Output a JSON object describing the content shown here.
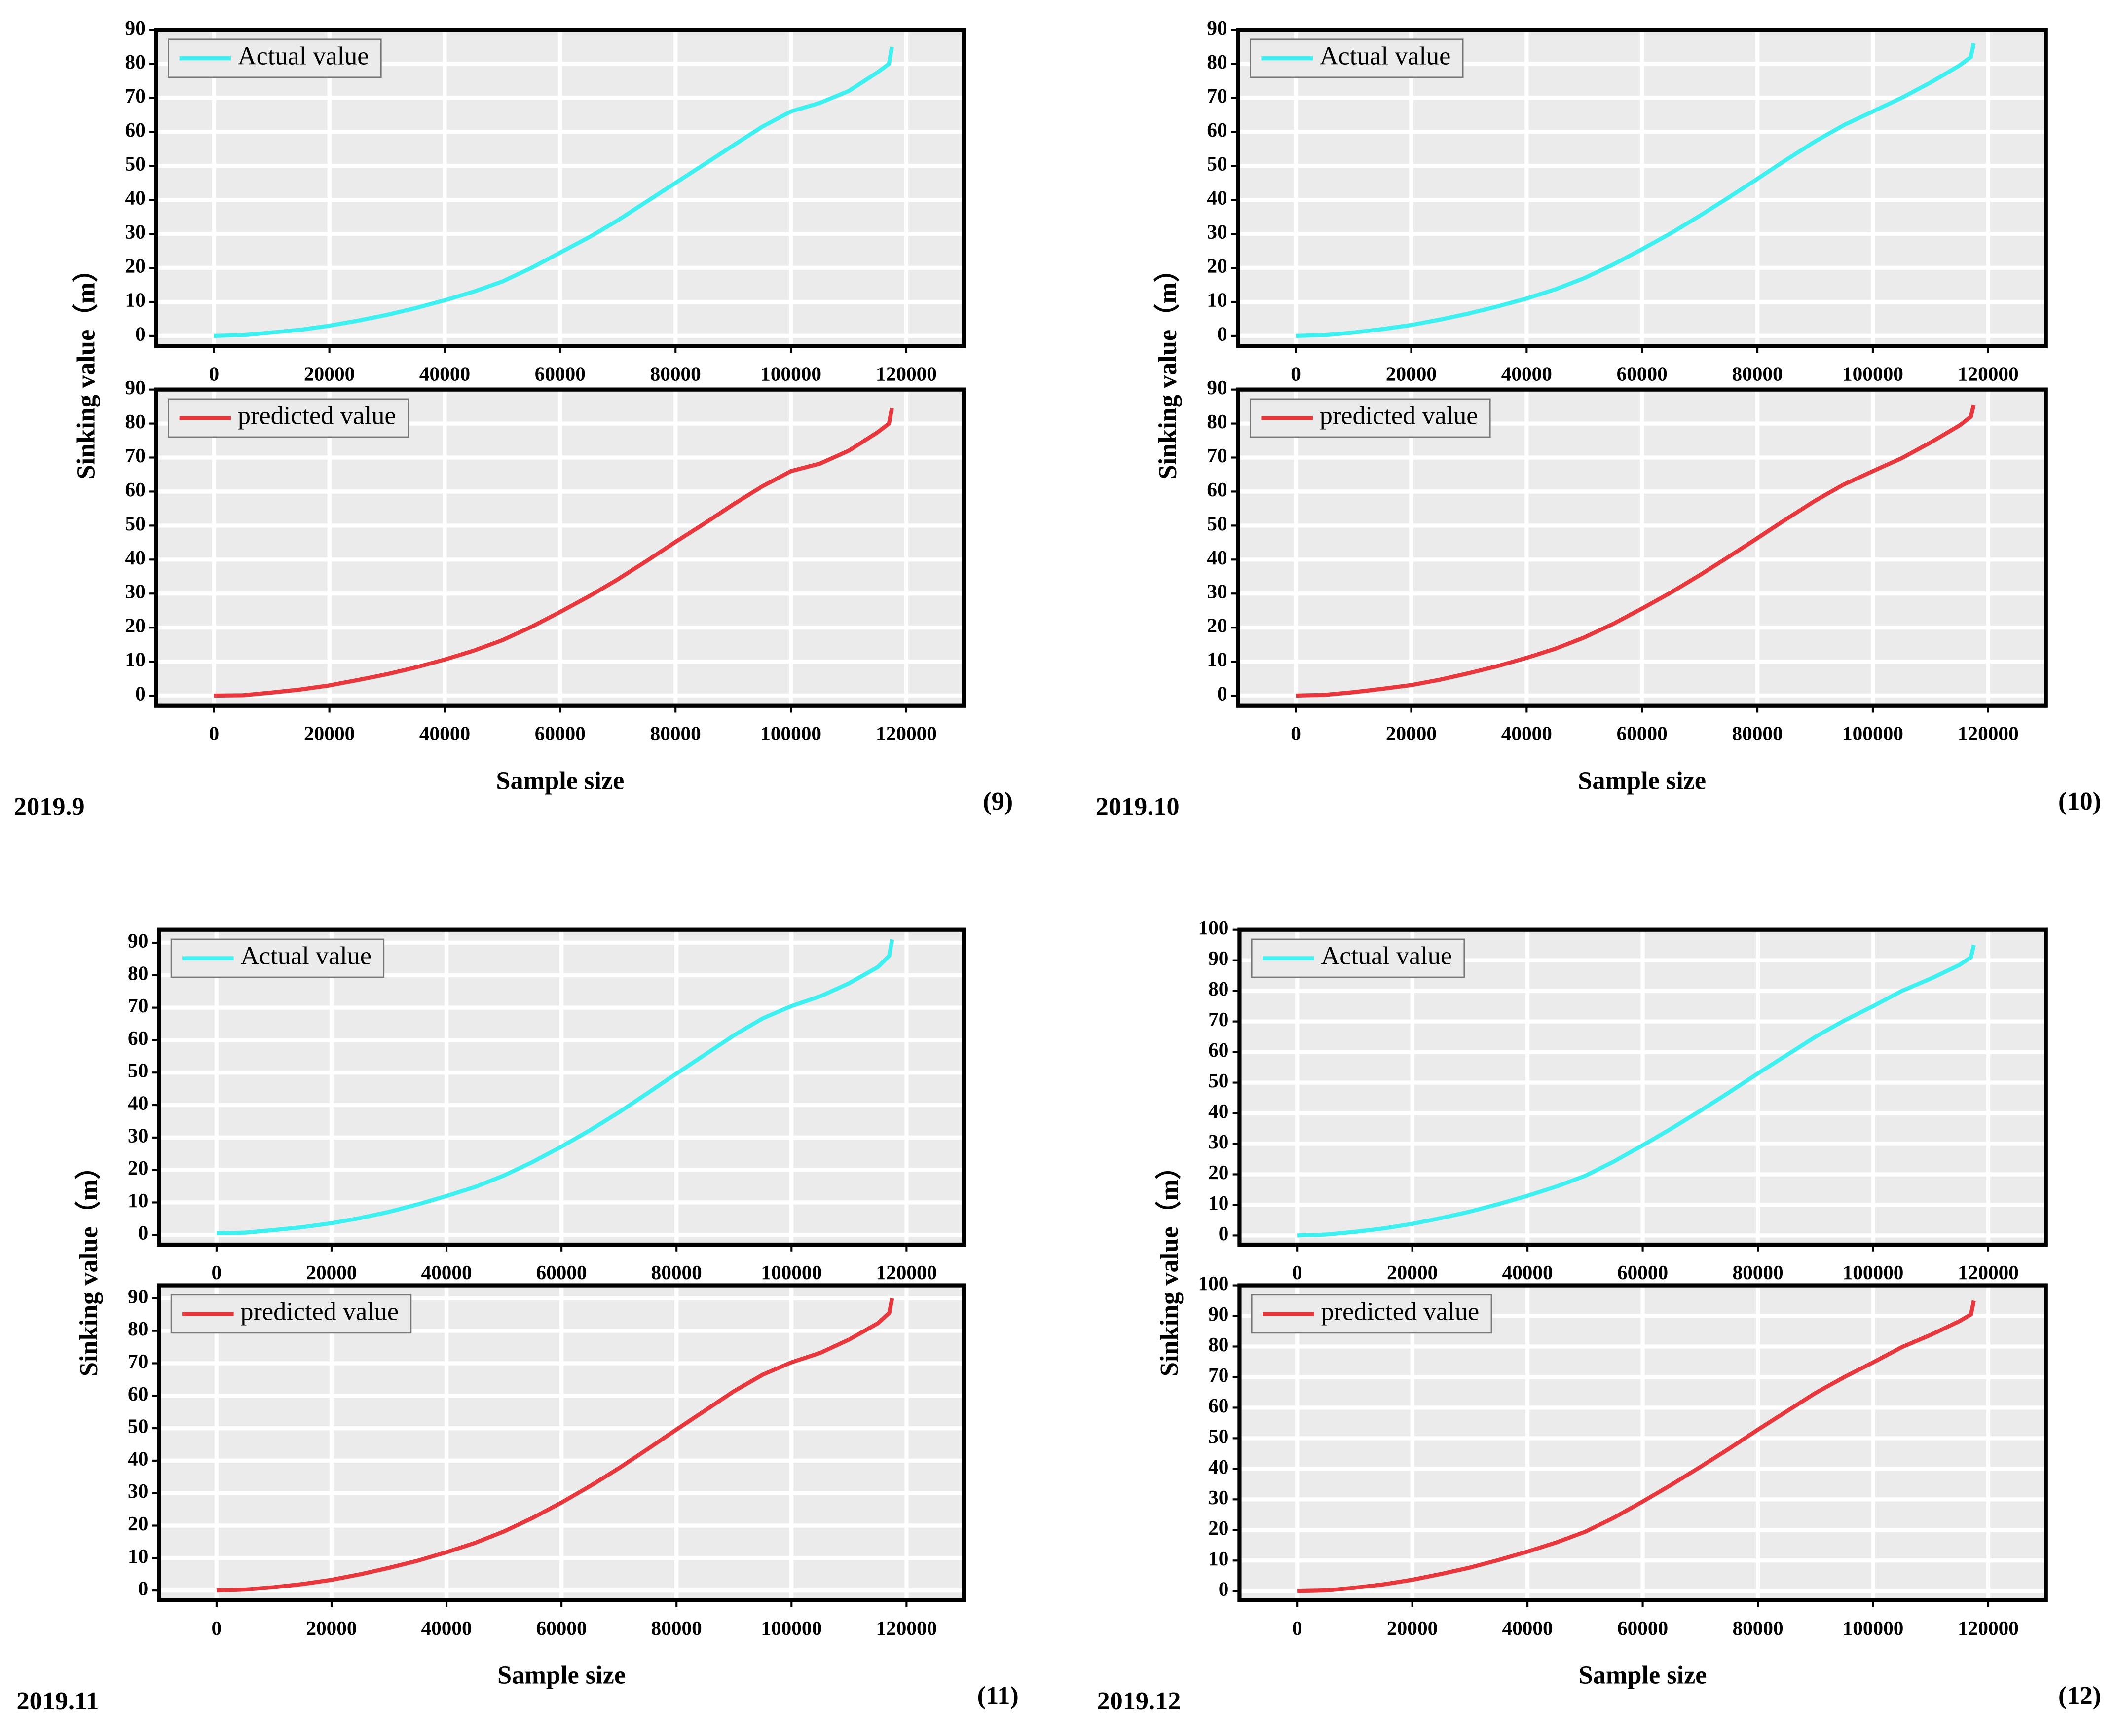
{
  "panels": [
    {
      "date": "2019.9",
      "tag": "(9)",
      "y_label": "Sinking value（m）",
      "x_label": "Sample size"
    },
    {
      "date": "2019.10",
      "tag": "(10)",
      "y_label": "Sinking value（m）",
      "x_label": "Sample size"
    },
    {
      "date": "2019.11",
      "tag": "(11)",
      "y_label": "Sinking value（m）",
      "x_label": "Sample size"
    },
    {
      "date": "2019.12",
      "tag": "(12)",
      "y_label": "Sinking value（m）",
      "x_label": "Sample size"
    }
  ],
  "chart_data": [
    {
      "type": "line",
      "x": [
        0,
        5000,
        10000,
        15000,
        20000,
        25000,
        30000,
        35000,
        40000,
        45000,
        50000,
        55000,
        60000,
        65000,
        70000,
        75000,
        80000,
        85000,
        90000,
        95000,
        100000,
        105000,
        110000,
        115000,
        117000,
        117500
      ],
      "series": [
        {
          "name": "Actual value",
          "color": "#3ff0f0",
          "values": [
            0,
            0.2,
            1,
            1.8,
            3,
            4.5,
            6.2,
            8.2,
            10.5,
            13,
            16,
            20,
            24.5,
            29,
            34,
            39.5,
            45,
            50.5,
            56,
            61.5,
            66,
            68.5,
            72,
            77.5,
            80,
            85
          ]
        }
      ],
      "xlim": [
        -10000,
        130000
      ],
      "xticks": [
        0,
        20000,
        40000,
        60000,
        80000,
        100000,
        120000
      ],
      "ylim": [
        -3,
        90
      ],
      "yticks": [
        0,
        10,
        20,
        30,
        40,
        50,
        60,
        70,
        80,
        90
      ],
      "grid": true
    },
    {
      "type": "line",
      "x": [
        0,
        5000,
        10000,
        15000,
        20000,
        25000,
        30000,
        35000,
        40000,
        45000,
        50000,
        55000,
        60000,
        65000,
        70000,
        75000,
        80000,
        85000,
        90000,
        95000,
        100000,
        105000,
        110000,
        115000,
        117000,
        117500
      ],
      "series": [
        {
          "name": "predicted value",
          "color": "#e8383d",
          "values": [
            0,
            0.1,
            0.9,
            1.8,
            3,
            4.6,
            6.3,
            8.3,
            10.6,
            13.2,
            16.3,
            20.2,
            24.6,
            29.2,
            34.2,
            39.6,
            45.2,
            50.6,
            56.2,
            61.5,
            66,
            68.2,
            72,
            77.4,
            80,
            84.5
          ]
        }
      ],
      "xlim": [
        -10000,
        130000
      ],
      "xticks": [
        0,
        20000,
        40000,
        60000,
        80000,
        100000,
        120000
      ],
      "ylim": [
        -3,
        90
      ],
      "yticks": [
        0,
        10,
        20,
        30,
        40,
        50,
        60,
        70,
        80,
        90
      ],
      "grid": true
    },
    {
      "type": "line",
      "x": [
        0,
        5000,
        10000,
        15000,
        20000,
        25000,
        30000,
        35000,
        40000,
        45000,
        50000,
        55000,
        60000,
        65000,
        70000,
        75000,
        80000,
        85000,
        90000,
        95000,
        100000,
        105000,
        110000,
        115000,
        117000,
        117500
      ],
      "series": [
        {
          "name": "Actual value",
          "color": "#3ff0f0",
          "values": [
            0,
            0.2,
            1,
            2,
            3.2,
            4.8,
            6.6,
            8.7,
            11,
            13.7,
            17,
            21,
            25.5,
            30.2,
            35.3,
            40.7,
            46.2,
            51.8,
            57.2,
            62,
            66,
            70,
            74.5,
            79.5,
            82,
            86
          ]
        }
      ],
      "xlim": [
        -10000,
        130000
      ],
      "xticks": [
        0,
        20000,
        40000,
        60000,
        80000,
        100000,
        120000
      ],
      "ylim": [
        -3,
        90
      ],
      "yticks": [
        0,
        10,
        20,
        30,
        40,
        50,
        60,
        70,
        80,
        90
      ],
      "grid": true
    },
    {
      "type": "line",
      "x": [
        0,
        5000,
        10000,
        15000,
        20000,
        25000,
        30000,
        35000,
        40000,
        45000,
        50000,
        55000,
        60000,
        65000,
        70000,
        75000,
        80000,
        85000,
        90000,
        95000,
        100000,
        105000,
        110000,
        115000,
        117000,
        117500
      ],
      "series": [
        {
          "name": "predicted value",
          "color": "#e8383d",
          "values": [
            0,
            0.2,
            1,
            2,
            3.1,
            4.7,
            6.6,
            8.7,
            11.1,
            13.8,
            17.1,
            21.1,
            25.6,
            30.3,
            35.4,
            40.8,
            46.3,
            51.9,
            57.3,
            62.1,
            66,
            69.8,
            74.4,
            79.4,
            82,
            85.5
          ]
        }
      ],
      "xlim": [
        -10000,
        130000
      ],
      "xticks": [
        0,
        20000,
        40000,
        60000,
        80000,
        100000,
        120000
      ],
      "ylim": [
        -3,
        90
      ],
      "yticks": [
        0,
        10,
        20,
        30,
        40,
        50,
        60,
        70,
        80,
        90
      ],
      "grid": true
    },
    {
      "type": "line",
      "x": [
        0,
        5000,
        10000,
        15000,
        20000,
        25000,
        30000,
        35000,
        40000,
        45000,
        50000,
        55000,
        60000,
        65000,
        70000,
        75000,
        80000,
        85000,
        90000,
        95000,
        100000,
        105000,
        110000,
        115000,
        117000,
        117500
      ],
      "series": [
        {
          "name": "Actual value",
          "color": "#3ff0f0",
          "values": [
            0.5,
            0.7,
            1.5,
            2.4,
            3.6,
            5.2,
            7.1,
            9.4,
            12,
            14.8,
            18.3,
            22.5,
            27.2,
            32.3,
            37.8,
            43.7,
            49.7,
            55.6,
            61.5,
            66.7,
            70.5,
            73.5,
            77.5,
            82.5,
            86,
            91
          ]
        }
      ],
      "xlim": [
        -10000,
        130000
      ],
      "xticks": [
        0,
        20000,
        40000,
        60000,
        80000,
        100000,
        120000
      ],
      "ylim": [
        -3,
        94
      ],
      "yticks": [
        0,
        10,
        20,
        30,
        40,
        50,
        60,
        70,
        80,
        90
      ],
      "grid": true
    },
    {
      "type": "line",
      "x": [
        0,
        5000,
        10000,
        15000,
        20000,
        25000,
        30000,
        35000,
        40000,
        45000,
        50000,
        55000,
        60000,
        65000,
        70000,
        75000,
        80000,
        85000,
        90000,
        95000,
        100000,
        105000,
        110000,
        115000,
        117000,
        117500
      ],
      "series": [
        {
          "name": "predicted value",
          "color": "#e8383d",
          "values": [
            0,
            0.3,
            1,
            2,
            3.3,
            5,
            7,
            9.2,
            11.8,
            14.7,
            18.2,
            22.4,
            27.1,
            32.2,
            37.7,
            43.6,
            49.6,
            55.5,
            61.4,
            66.5,
            70.3,
            73.2,
            77.3,
            82.3,
            85.5,
            90
          ]
        }
      ],
      "xlim": [
        -10000,
        130000
      ],
      "xticks": [
        0,
        20000,
        40000,
        60000,
        80000,
        100000,
        120000
      ],
      "ylim": [
        -3,
        94
      ],
      "yticks": [
        0,
        10,
        20,
        30,
        40,
        50,
        60,
        70,
        80,
        90
      ],
      "grid": true
    },
    {
      "type": "line",
      "x": [
        0,
        5000,
        10000,
        15000,
        20000,
        25000,
        30000,
        35000,
        40000,
        45000,
        50000,
        55000,
        60000,
        65000,
        70000,
        75000,
        80000,
        85000,
        90000,
        95000,
        100000,
        105000,
        110000,
        115000,
        117000,
        117500
      ],
      "series": [
        {
          "name": "Actual value",
          "color": "#3ff0f0",
          "values": [
            0,
            0.3,
            1.2,
            2.3,
            3.8,
            5.7,
            7.8,
            10.3,
            13,
            16,
            19.5,
            24.2,
            29.5,
            35,
            40.8,
            46.8,
            53,
            59,
            65,
            70.3,
            75,
            80,
            84,
            88.5,
            91,
            95
          ]
        }
      ],
      "xlim": [
        -10000,
        130000
      ],
      "xticks": [
        0,
        20000,
        40000,
        60000,
        80000,
        100000,
        120000
      ],
      "ylim": [
        -3,
        100
      ],
      "yticks": [
        0,
        10,
        20,
        30,
        40,
        50,
        60,
        70,
        80,
        90,
        100
      ],
      "grid": true
    },
    {
      "type": "line",
      "x": [
        0,
        5000,
        10000,
        15000,
        20000,
        25000,
        30000,
        35000,
        40000,
        45000,
        50000,
        55000,
        60000,
        65000,
        70000,
        75000,
        80000,
        85000,
        90000,
        95000,
        100000,
        105000,
        110000,
        115000,
        117000,
        117500
      ],
      "series": [
        {
          "name": "predicted value",
          "color": "#e8383d",
          "values": [
            0,
            0.2,
            1.1,
            2.2,
            3.7,
            5.6,
            7.7,
            10.2,
            12.9,
            15.9,
            19.4,
            24,
            29.3,
            34.8,
            40.6,
            46.6,
            52.8,
            58.8,
            64.8,
            70,
            74.8,
            79.8,
            83.8,
            88.3,
            90.5,
            95
          ]
        }
      ],
      "xlim": [
        -10000,
        130000
      ],
      "xticks": [
        0,
        20000,
        40000,
        60000,
        80000,
        100000,
        120000
      ],
      "ylim": [
        -3,
        100
      ],
      "yticks": [
        0,
        10,
        20,
        30,
        40,
        50,
        60,
        70,
        80,
        90,
        100
      ],
      "grid": true
    }
  ]
}
